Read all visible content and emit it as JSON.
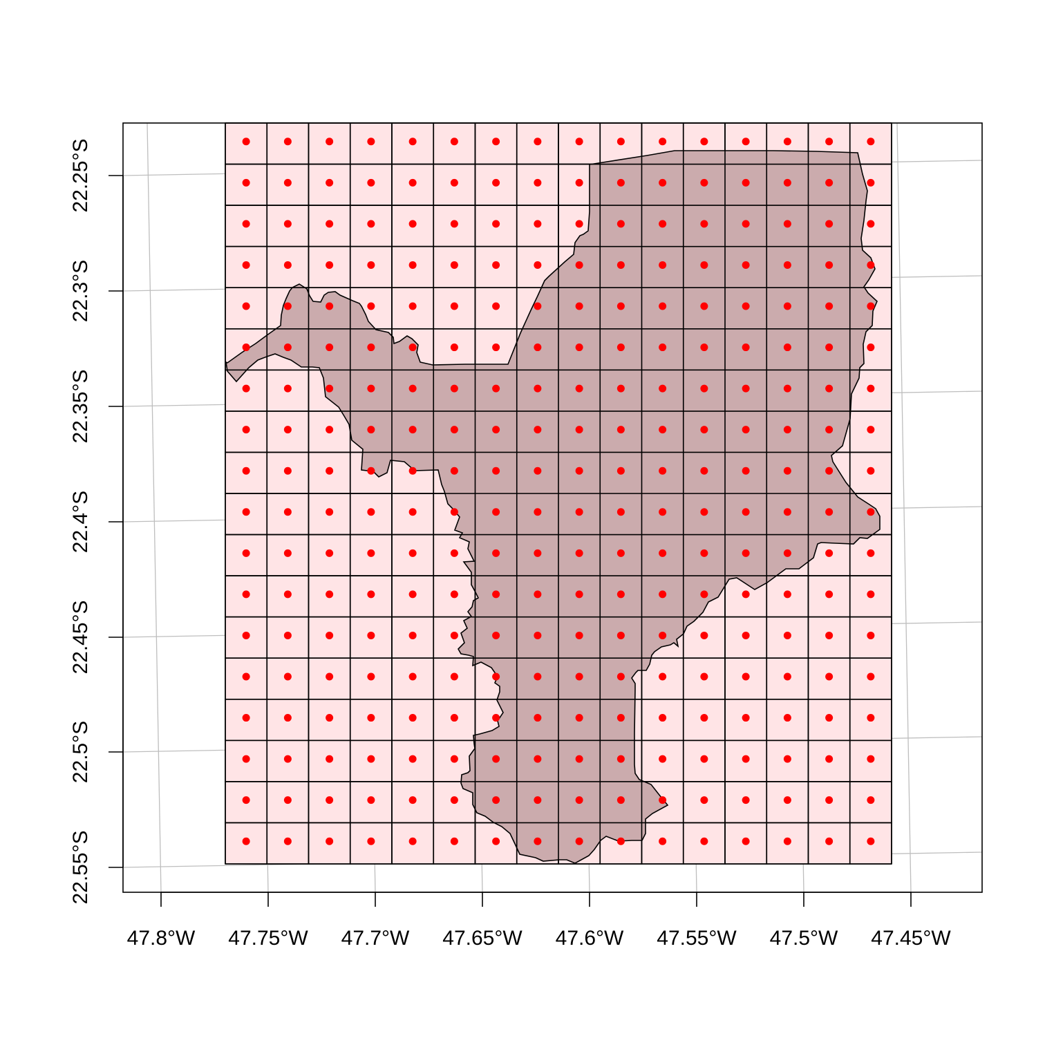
{
  "map": {
    "x_axis": {
      "labels": [
        "47.8°W",
        "47.75°W",
        "47.7°W",
        "47.65°W",
        "47.6°W",
        "47.55°W",
        "47.5°W",
        "47.45°W"
      ]
    },
    "y_axis": {
      "labels": [
        "22.25°S",
        "22.3°S",
        "22.35°S",
        "22.4°S",
        "22.45°S",
        "22.5°S",
        "22.55°S"
      ]
    },
    "grid": {
      "columns": 16,
      "rows": 18,
      "cell_fill": "#ffe4e6",
      "cell_stroke": "#000000"
    },
    "centroids": {
      "color": "#ff0000"
    },
    "region": {
      "fill": "#c8a8aa",
      "stroke": "#000000"
    },
    "graticule_color": "#bebebe"
  }
}
